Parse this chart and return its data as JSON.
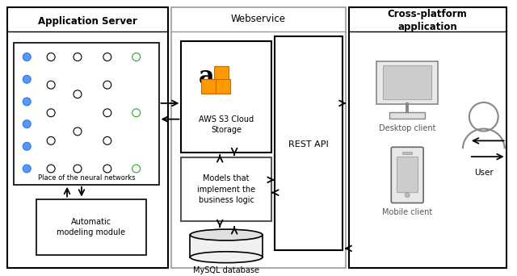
{
  "background_color": "#ffffff",
  "app_server_label": "Application Server",
  "webservice_label": "Webservice",
  "cross_platform_label": "Cross-platform\napplication",
  "neural_label": "Place of the neural networks",
  "auto_label": "Automatic\nmodeling module",
  "aws_label": "AWS S3 Cloud\nStorage",
  "models_label": "Models that\nimplement the\nbusiness logic",
  "mysql_label": "MySQL database",
  "rest_label": "REST API",
  "desktop_label": "Desktop client",
  "mobile_label": "Mobile client",
  "user_label": "User"
}
